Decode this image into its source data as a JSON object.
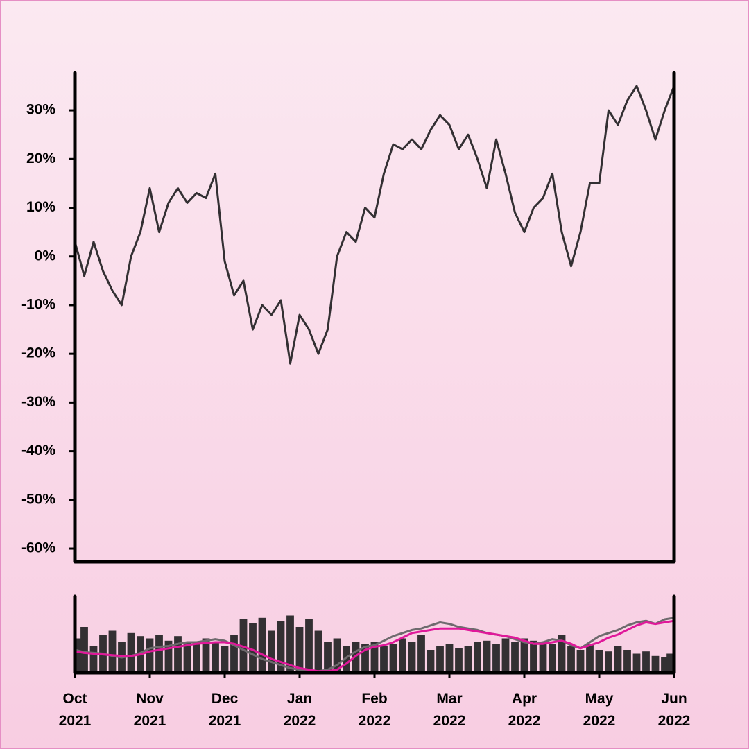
{
  "chart_data": [
    {
      "type": "line",
      "color": "#333033",
      "values": [
        3,
        -4,
        3,
        -3,
        -7,
        -10,
        0,
        5,
        14,
        5,
        11,
        14,
        11,
        13,
        12,
        17,
        -1,
        -8,
        -5,
        -15,
        -10,
        -12,
        -9,
        -22,
        -12,
        -15,
        -20,
        -15,
        0,
        5,
        3,
        10,
        8,
        17,
        23,
        22,
        24,
        22,
        26,
        29,
        27,
        22,
        25,
        20,
        14,
        24,
        17,
        9,
        5,
        10,
        12,
        17,
        5,
        -2,
        5,
        15,
        15,
        30,
        27,
        32,
        35,
        30,
        24,
        30,
        35
      ],
      "ylim": [
        -62.7,
        37.7
      ],
      "yticks": [
        {
          "value": 30,
          "label": "30%"
        },
        {
          "value": 20,
          "label": "20%"
        },
        {
          "value": 10,
          "label": "10%"
        },
        {
          "value": 0,
          "label": "0%"
        },
        {
          "value": -10,
          "label": "-10%"
        },
        {
          "value": -20,
          "label": "-20%"
        },
        {
          "value": -30,
          "label": "-30%"
        },
        {
          "value": -40,
          "label": "-40%"
        },
        {
          "value": -50,
          "label": "-50%"
        },
        {
          "value": -60,
          "label": "-60%"
        }
      ]
    },
    {
      "type": "bar",
      "color": "#333033",
      "categories": [
        "Oct 2021",
        null,
        null,
        null,
        null,
        null,
        null,
        null,
        "Nov 2021",
        null,
        null,
        null,
        null,
        null,
        null,
        null,
        "Dec 2021",
        null,
        null,
        null,
        null,
        null,
        null,
        null,
        "Jan 2022",
        null,
        null,
        null,
        null,
        null,
        null,
        null,
        "Feb 2022",
        null,
        null,
        null,
        null,
        null,
        null,
        null,
        "Mar 2022",
        null,
        null,
        null,
        null,
        null,
        null,
        null,
        "Apr 2022",
        null,
        null,
        null,
        null,
        null,
        null,
        null,
        "May 2022",
        null,
        null,
        null,
        null,
        null,
        null,
        null,
        "Jun 2022"
      ],
      "values": [
        45,
        60,
        35,
        50,
        55,
        40,
        52,
        48,
        45,
        50,
        42,
        48,
        40,
        38,
        45,
        40,
        35,
        50,
        70,
        65,
        72,
        55,
        68,
        75,
        60,
        70,
        55,
        40,
        45,
        35,
        40,
        38,
        40,
        35,
        38,
        45,
        40,
        50,
        30,
        35,
        38,
        32,
        35,
        40,
        42,
        38,
        45,
        40,
        45,
        42,
        40,
        38,
        50,
        35,
        30,
        38,
        30,
        28,
        35,
        30,
        25,
        28,
        22,
        20,
        25
      ],
      "ylim": [
        0,
        100
      ],
      "overlays": [
        {
          "color": "#6e6a6d",
          "values": [
            30,
            27,
            26,
            25,
            22,
            20,
            22,
            26,
            32,
            34,
            35,
            38,
            40,
            40,
            42,
            44,
            42,
            36,
            30,
            24,
            18,
            14,
            10,
            6,
            4,
            2,
            2,
            4,
            10,
            20,
            28,
            34,
            36,
            42,
            48,
            52,
            56,
            58,
            62,
            66,
            64,
            60,
            58,
            56,
            52,
            50,
            48,
            44,
            40,
            38,
            40,
            44,
            42,
            36,
            32,
            40,
            48,
            52,
            56,
            62,
            66,
            68,
            64,
            70,
            72
          ]
        },
        {
          "color": "#e0189a",
          "values": [
            28,
            26,
            25,
            24,
            23,
            22,
            22,
            24,
            28,
            30,
            32,
            34,
            36,
            38,
            39,
            40,
            40,
            38,
            34,
            30,
            24,
            18,
            14,
            10,
            6,
            4,
            2,
            2,
            4,
            12,
            22,
            30,
            34,
            36,
            40,
            46,
            52,
            54,
            56,
            58,
            58,
            58,
            56,
            54,
            52,
            50,
            48,
            46,
            42,
            38,
            38,
            40,
            42,
            38,
            32,
            36,
            40,
            46,
            50,
            56,
            62,
            66,
            64,
            66,
            68
          ]
        }
      ]
    }
  ]
}
